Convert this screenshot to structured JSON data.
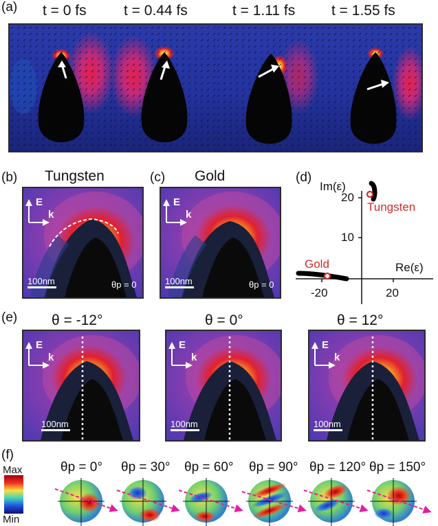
{
  "panel_a": {
    "label": "(a)",
    "time_labels": [
      "t = 0   fs",
      "t = 0.44  fs",
      "t = 1.11   fs",
      "t = 1.55  fs"
    ]
  },
  "panel_b": {
    "label": "(b)",
    "title": "Tungsten",
    "scalebar": "100nm",
    "theta_p": "θp = 0"
  },
  "panel_c": {
    "label": "(c)",
    "title": "Gold",
    "scalebar": "100nm",
    "theta_p": "θp = 0"
  },
  "panel_d": {
    "label": "(d)",
    "ylabel": "Im(ε)",
    "xlabel": "Re(ε)",
    "y_ticks": [
      "20",
      "10"
    ],
    "x_ticks": [
      "-20",
      "20"
    ],
    "tungsten_label": "Tungsten",
    "gold_label": "Gold"
  },
  "panel_e": {
    "label": "(e)",
    "titles": [
      "θ = -12°",
      "θ = 0°",
      "θ = 12°"
    ],
    "scalebar": "100nm"
  },
  "panel_f": {
    "label": "(f)",
    "colorbar_max": "Max",
    "colorbar_min": "Min",
    "titles": [
      "θp = 0°",
      "θp = 30°",
      "θp = 60°",
      "θp = 90°",
      "θp = 120°",
      "θp = 150°"
    ]
  },
  "field_vector_labels": {
    "E": "E",
    "k": "k"
  },
  "colors": {
    "field_low": "#1c2a8c",
    "field_mid": "#8a2aa0",
    "field_high": "#ffe060",
    "marker_red": "#d42a2a",
    "arrow_magenta": "#e0209a"
  }
}
